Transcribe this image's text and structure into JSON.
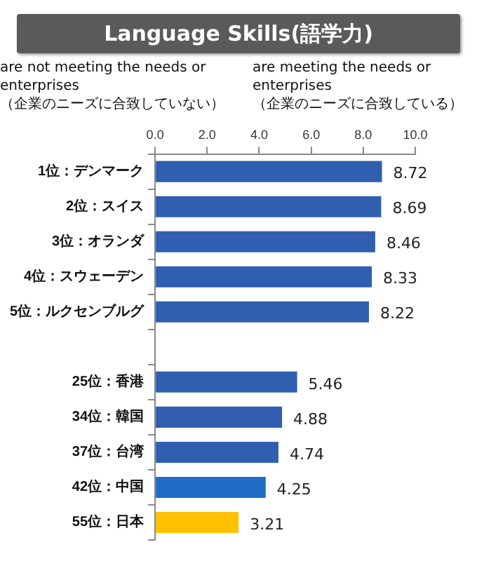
{
  "chart_data": {
    "type": "bar",
    "orientation": "horizontal",
    "title": "Language Skills(語学力)",
    "annotations": [
      "are not meeting the needs or enterprises\n（企業のニーズに合致していない）",
      "are meeting the needs or enterprises\n（企業のニーズに合致している）"
    ],
    "categories": [
      "1位：デンマーク",
      "2位：スイス",
      "3位：オランダ",
      "4位：スウェーデン",
      "5位：ルクセンブルグ",
      null,
      "25位：香港",
      "34位：韓国",
      "37位：台湾",
      "42位：中国",
      "55位：日本"
    ],
    "values": [
      8.72,
      8.69,
      8.46,
      8.33,
      8.22,
      null,
      5.46,
      4.88,
      4.74,
      4.25,
      3.21
    ],
    "colors": [
      "#2f5fae",
      "#2f5fae",
      "#2f5fae",
      "#2f5fae",
      "#2f5fae",
      "#2f5fae",
      "#2f5fae",
      "#2f5fae",
      "#2f5fae",
      "#1f6cc6",
      "#ffc000"
    ],
    "xlim": [
      0,
      10
    ],
    "xticks": [
      {
        "value": 0,
        "label": "0.0"
      },
      {
        "value": 2,
        "label": "2.0"
      },
      {
        "value": 4,
        "label": "4.0"
      },
      {
        "value": 6,
        "label": "6.0"
      },
      {
        "value": 8,
        "label": "8.0"
      },
      {
        "value": 10,
        "label": "10.0"
      }
    ],
    "data_labels": true
  }
}
